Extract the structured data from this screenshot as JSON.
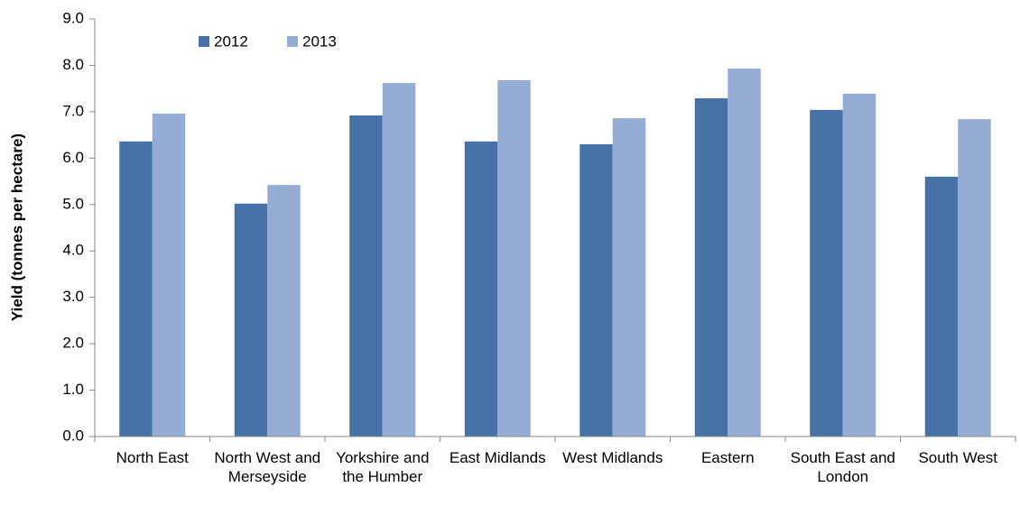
{
  "chart_data": {
    "type": "bar",
    "y_label": "Yield (tonnes per hectare)",
    "categories": [
      "North East",
      "North West and Merseyside",
      "Yorkshire and the Humber",
      "East Midlands",
      "West Midlands",
      "Eastern",
      "South East and London",
      "South West"
    ],
    "series": [
      {
        "name": "2012",
        "color": "#4672a8",
        "values": [
          6.36,
          5.02,
          6.92,
          6.36,
          6.3,
          7.29,
          7.04,
          5.6
        ]
      },
      {
        "name": "2013",
        "color": "#95acd4",
        "values": [
          6.96,
          5.42,
          7.62,
          7.68,
          6.86,
          7.93,
          7.39,
          6.84
        ]
      }
    ],
    "ylim": [
      0,
      9
    ],
    "yticks": [
      {
        "value": 0,
        "label": "0.0"
      },
      {
        "value": 1,
        "label": "1.0"
      },
      {
        "value": 2,
        "label": "2.0"
      },
      {
        "value": 3,
        "label": "3.0"
      },
      {
        "value": 4,
        "label": "4.0"
      },
      {
        "value": 5,
        "label": "5.0"
      },
      {
        "value": 6,
        "label": "6.0"
      },
      {
        "value": 7,
        "label": "7.0"
      },
      {
        "value": 8,
        "label": "8.0"
      },
      {
        "value": 9,
        "label": "9.0"
      }
    ],
    "grid": false,
    "legend": "top-left"
  }
}
